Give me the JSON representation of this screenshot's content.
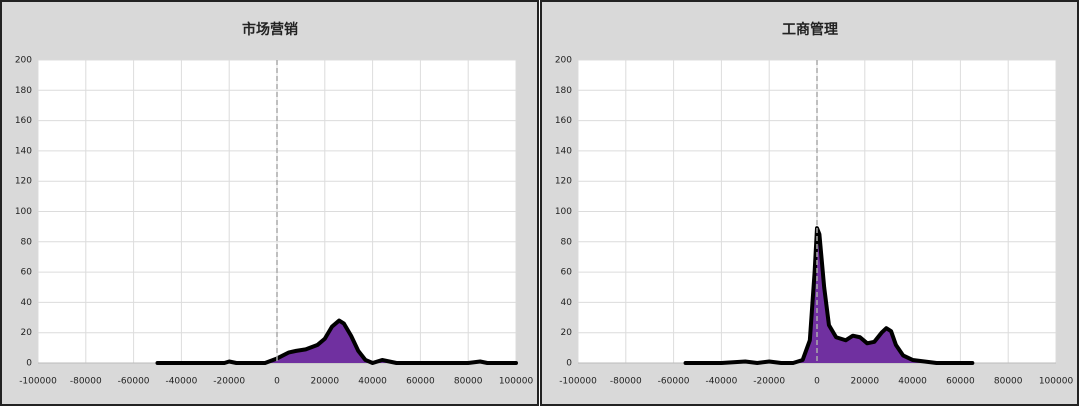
{
  "chart_data": [
    {
      "type": "area",
      "title": "市场营销",
      "color": "#7030a0",
      "line_color": "#000000",
      "x": [
        -50000,
        -40000,
        -30000,
        -22000,
        -20000,
        -17000,
        -10000,
        -5000,
        0,
        5000,
        8000,
        12000,
        17000,
        20000,
        23000,
        26000,
        28000,
        31000,
        34000,
        37000,
        40000,
        44000,
        47000,
        50000,
        60000,
        80000,
        85000,
        88000,
        100000
      ],
      "values": [
        0,
        0,
        0,
        0,
        1,
        0,
        0,
        0,
        3,
        7,
        8,
        9,
        12,
        16,
        24,
        28,
        26,
        18,
        8,
        2,
        0,
        2,
        1,
        0,
        0,
        0,
        1,
        0,
        0
      ],
      "xlim": [
        -100000,
        100000
      ],
      "xticks": [
        -100000,
        -80000,
        -60000,
        -40000,
        -20000,
        0,
        20000,
        40000,
        60000,
        80000,
        100000
      ],
      "ylim": [
        0,
        200
      ],
      "yticks": [
        0,
        20,
        40,
        60,
        80,
        100,
        120,
        140,
        160,
        180,
        200
      ],
      "grid": true,
      "vline": 0
    },
    {
      "type": "area",
      "title": "工商管理",
      "color": "#7030a0",
      "line_color": "#000000",
      "x": [
        -55000,
        -40000,
        -30000,
        -25000,
        -20000,
        -15000,
        -10000,
        -6000,
        -3000,
        -1000,
        0,
        1000,
        3000,
        5000,
        8000,
        12000,
        15000,
        18000,
        21000,
        24000,
        27000,
        29000,
        31000,
        33000,
        36000,
        40000,
        45000,
        50000,
        65000
      ],
      "values": [
        0,
        0,
        1,
        0,
        1,
        0,
        0,
        2,
        15,
        60,
        89,
        85,
        50,
        25,
        17,
        15,
        18,
        17,
        13,
        14,
        20,
        23,
        21,
        12,
        5,
        2,
        1,
        0,
        0
      ],
      "xlim": [
        -100000,
        100000
      ],
      "xticks": [
        -100000,
        -80000,
        -60000,
        -40000,
        -20000,
        0,
        20000,
        40000,
        60000,
        80000,
        100000
      ],
      "ylim": [
        0,
        200
      ],
      "yticks": [
        0,
        20,
        40,
        60,
        80,
        100,
        120,
        140,
        160,
        180,
        200
      ],
      "grid": true,
      "vline": 0
    }
  ]
}
